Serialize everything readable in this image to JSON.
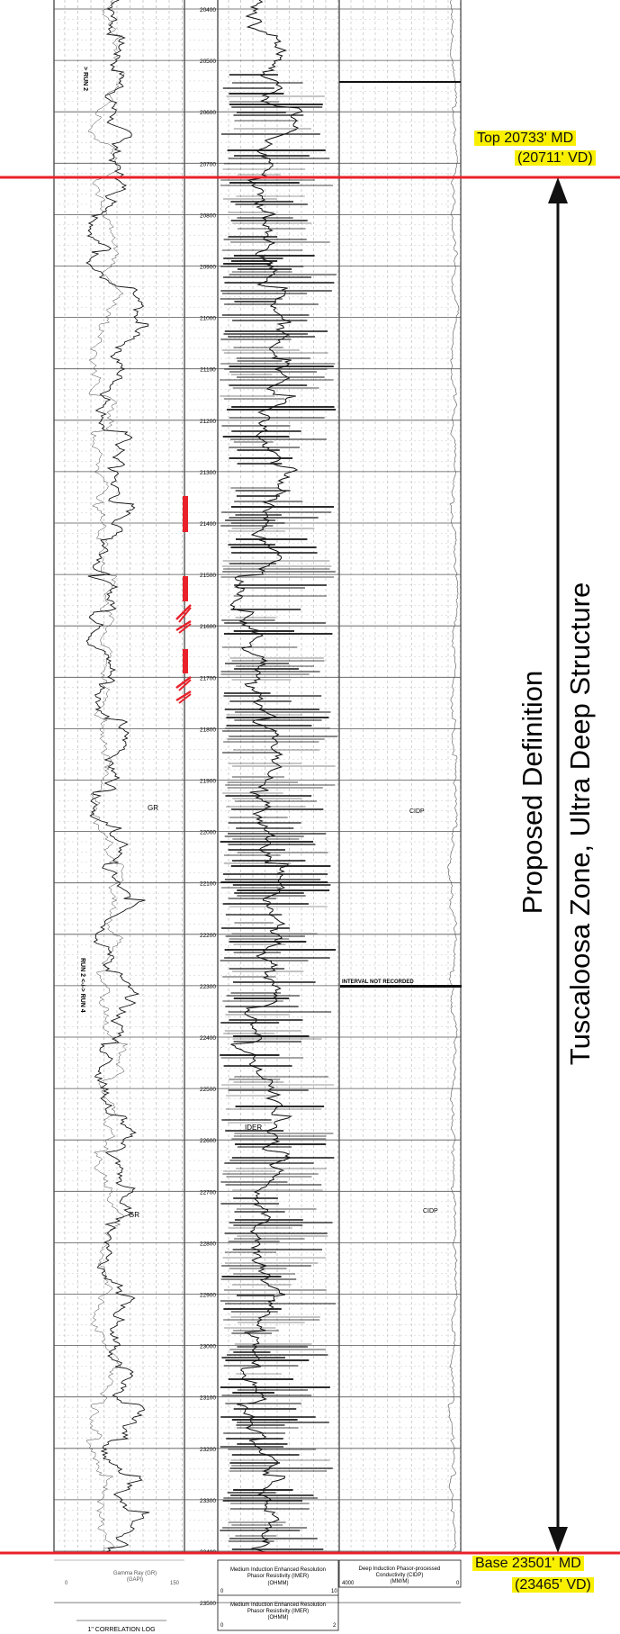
{
  "depth_ticks": [
    "20400",
    "20500",
    "20600",
    "20700",
    "20800",
    "20900",
    "21000",
    "21100",
    "21200",
    "21300",
    "21400",
    "21500",
    "21600",
    "21700",
    "21800",
    "21900",
    "22000",
    "22100",
    "22200",
    "22300",
    "22400",
    "22500",
    "22600",
    "22700",
    "22800",
    "22900",
    "23000",
    "23100",
    "23200",
    "23300",
    "23400",
    "23500"
  ],
  "run_labels": {
    "run2": "> RUN 2",
    "run_change": "RUN 2 <-/-> RUN 4"
  },
  "curve_labels": {
    "gr_a": "GR",
    "gr_b": "GR",
    "ider": "IDER",
    "cidp_a": "CIDP",
    "cidp_b": "CIDP"
  },
  "interval_note": "INTERVAL NOT RECORDED",
  "markers": {
    "top": {
      "md": "Top 20733' MD",
      "vd": "(20711' VD)"
    },
    "base": {
      "md": "Base 23501' MD",
      "vd": "(23465' VD)"
    }
  },
  "zone_title": {
    "line1": "Proposed Definition",
    "line2": "Tuscaloosa Zone, Ultra Deep Structure"
  },
  "headers": {
    "gr": {
      "title": "Gamma Ray (GR)",
      "unit": "(GAPI)",
      "min": "0",
      "max": "150"
    },
    "imer_a": {
      "line1": "Medium Induction Enhanced Resolution",
      "line2": "Phasor Resistivity (IMER)",
      "unit": "(OHMM)",
      "min": "0",
      "max": "10"
    },
    "imer_b": {
      "line1": "Medium Induction Enhanced Resolution",
      "line2": "Phasor Resistivity (IMER)",
      "unit": "(OHMM)",
      "min": "0",
      "max": "2"
    },
    "cidp": {
      "line1": "Deep Induction Phasor-processed",
      "line2": "Conductivity (CIDP)",
      "unit": "(MM/M)",
      "min": "4000",
      "max": "0"
    },
    "log_title": "1\" CORRELATION LOG"
  },
  "colors": {
    "marker": "#e8212a",
    "highlight": "#f8f000",
    "ink": "#111111",
    "grid": "#8a8a8a"
  }
}
